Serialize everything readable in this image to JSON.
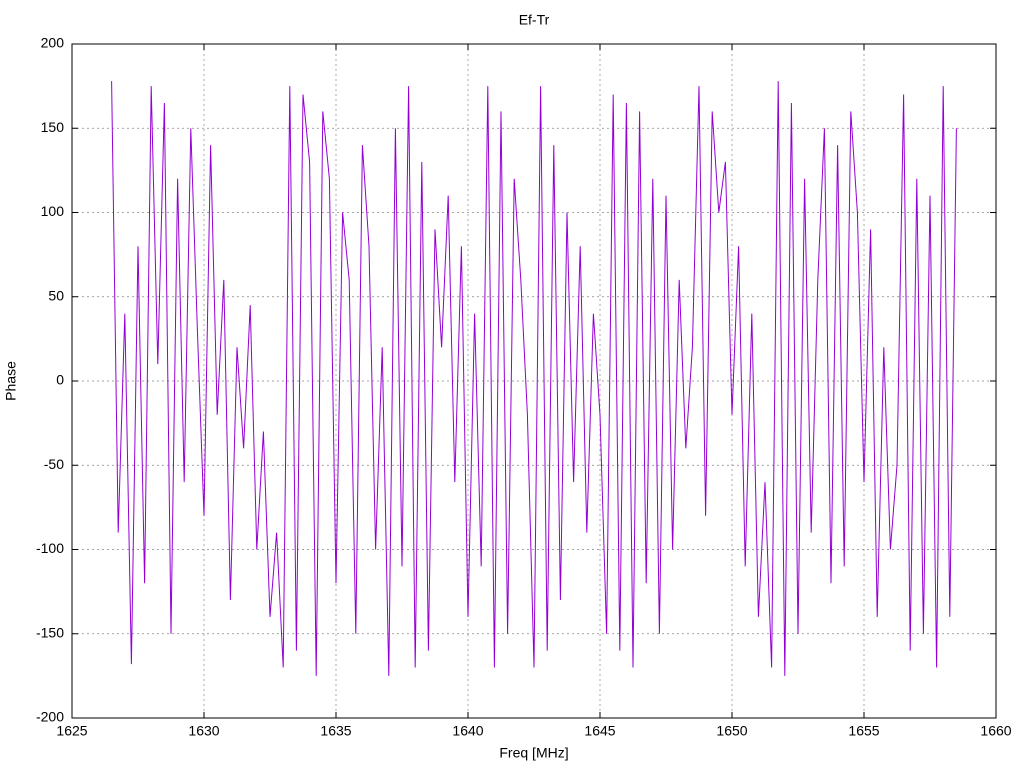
{
  "chart_data": {
    "type": "line",
    "title": "Ef-Tr",
    "x_label": "Freq [MHz]",
    "y_label": "Phase",
    "x": [
      1626.5,
      1626.75,
      1627,
      1627.25,
      1627.5,
      1627.75,
      1628,
      1628.25,
      1628.5,
      1628.75,
      1629,
      1629.25,
      1629.5,
      1629.75,
      1630,
      1630.25,
      1630.5,
      1630.75,
      1631,
      1631.25,
      1631.5,
      1631.75,
      1632,
      1632.25,
      1632.5,
      1632.75,
      1633,
      1633.25,
      1633.5,
      1633.75,
      1634,
      1634.25,
      1634.5,
      1634.75,
      1635,
      1635.25,
      1635.5,
      1635.75,
      1636,
      1636.25,
      1636.5,
      1636.75,
      1637,
      1637.25,
      1637.5,
      1637.75,
      1638,
      1638.25,
      1638.5,
      1638.75,
      1639,
      1639.25,
      1639.5,
      1639.75,
      1640,
      1640.25,
      1640.5,
      1640.75,
      1641,
      1641.25,
      1641.5,
      1641.75,
      1642,
      1642.25,
      1642.5,
      1642.75,
      1643,
      1643.25,
      1643.5,
      1643.75,
      1644,
      1644.25,
      1644.5,
      1644.75,
      1645,
      1645.25,
      1645.5,
      1645.75,
      1646,
      1646.25,
      1646.5,
      1646.75,
      1647,
      1647.25,
      1647.5,
      1647.75,
      1648,
      1648.25,
      1648.5,
      1648.75,
      1649,
      1649.25,
      1649.5,
      1649.75,
      1650,
      1650.25,
      1650.5,
      1650.75,
      1651,
      1651.25,
      1651.5,
      1651.75,
      1652,
      1652.25,
      1652.5,
      1652.75,
      1653,
      1653.25,
      1653.5,
      1653.75,
      1654,
      1654.25,
      1654.5,
      1654.75,
      1655,
      1655.25,
      1655.5,
      1655.75,
      1656,
      1656.25,
      1656.5,
      1656.75,
      1657,
      1657.25,
      1657.5,
      1657.75,
      1658,
      1658.25,
      1658.5
    ],
    "series": [
      {
        "name": "Ef-Tr",
        "color": "#9400d3",
        "values": [
          178,
          -90,
          40,
          -168,
          80,
          -120,
          175,
          10,
          165,
          -150,
          120,
          -60,
          150,
          30,
          -80,
          140,
          -20,
          60,
          -130,
          20,
          -40,
          45,
          -100,
          -30,
          -140,
          -90,
          -170,
          175,
          -160,
          170,
          130,
          -175,
          160,
          120,
          -120,
          100,
          60,
          -150,
          140,
          80,
          -100,
          20,
          -175,
          150,
          -110,
          175,
          -170,
          130,
          -160,
          90,
          20,
          110,
          -60,
          80,
          -140,
          40,
          -110,
          175,
          -170,
          160,
          -150,
          120,
          60,
          -20,
          -170,
          175,
          -160,
          140,
          -130,
          100,
          -60,
          80,
          -90,
          40,
          -20,
          -150,
          170,
          -160,
          165,
          -170,
          160,
          -120,
          120,
          -150,
          110,
          -100,
          60,
          -40,
          20,
          175,
          -80,
          160,
          100,
          130,
          -20,
          80,
          -110,
          40,
          -140,
          -60,
          -170,
          178,
          -175,
          165,
          -150,
          120,
          -90,
          60,
          150,
          -120,
          140,
          -110,
          160,
          100,
          -60,
          90,
          -140,
          20,
          -100,
          -50,
          170,
          -160,
          120,
          -150,
          110,
          -170,
          175,
          -140,
          150
        ]
      }
    ],
    "xlim": [
      1625,
      1660
    ],
    "xticks": [
      1625,
      1630,
      1635,
      1640,
      1645,
      1650,
      1655,
      1660
    ],
    "ylim": [
      -200,
      200
    ],
    "yticks": [
      -200,
      -150,
      -100,
      -50,
      0,
      50,
      100,
      150,
      200
    ],
    "grid": true
  }
}
